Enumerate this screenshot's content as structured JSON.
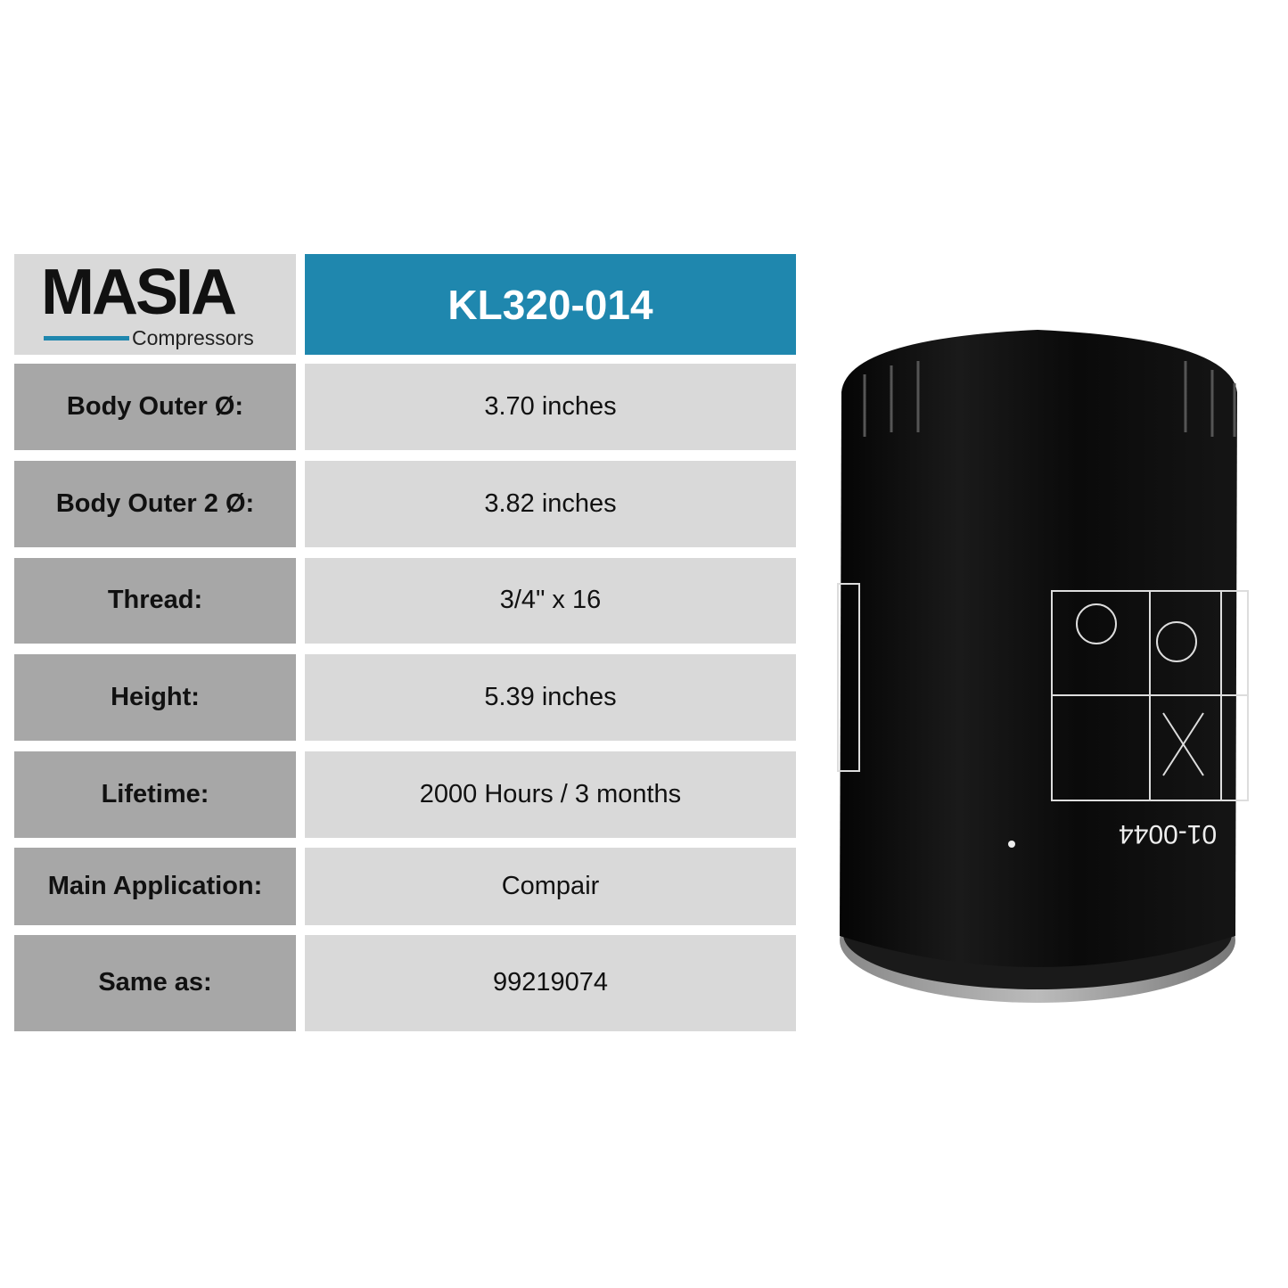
{
  "brand": {
    "name": "MASIA",
    "tagline": "Compressors",
    "accent": "#1f87ae"
  },
  "product": {
    "code": "KL320-014",
    "photo_marking": "01-0044"
  },
  "specs": [
    {
      "label": "Body Outer Ø:",
      "value": "3.70 inches"
    },
    {
      "label": "Body Outer 2 Ø:",
      "value": "3.82 inches"
    },
    {
      "label": "Thread:",
      "value": "3/4\" x 16"
    },
    {
      "label": "Height:",
      "value": "5.39 inches"
    },
    {
      "label": "Lifetime:",
      "value": "2000 Hours / 3 months"
    },
    {
      "label": "Main Application:",
      "value": "Compair"
    },
    {
      "label": "Same as:",
      "value": "99219074"
    }
  ],
  "colors": {
    "header": "#1f87ae",
    "label_bg": "#a7a7a7",
    "value_bg": "#d9d9d9"
  }
}
